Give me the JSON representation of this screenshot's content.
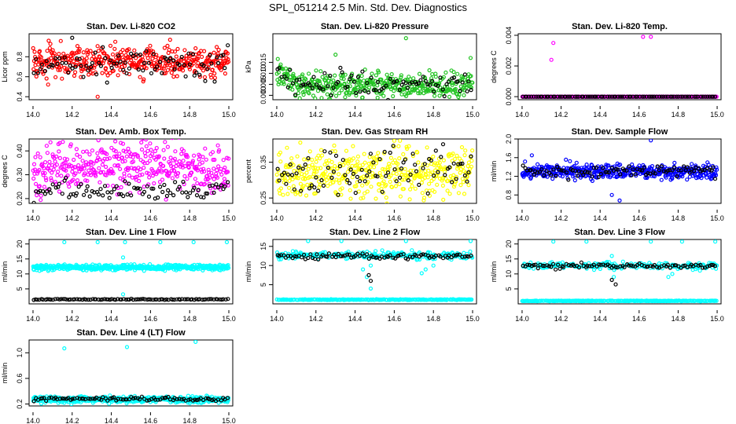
{
  "figure_title": "SPL_051214  2.5 Min. Std. Dev. Diagnostics",
  "colors": {
    "red": "#ff0000",
    "green": "#22c422",
    "magenta": "#ff00ff",
    "yellow": "#ffff00",
    "blue": "#0000ff",
    "cyan": "#00ffff",
    "black": "#000000"
  },
  "chart_data": [
    {
      "type": "scatter",
      "title": "Stan. Dev. Li-820 CO2",
      "xlabel": "",
      "ylabel": "Licor ppm",
      "xlim": [
        13.98,
        15.02
      ],
      "ylim": [
        0.37,
        1.03
      ],
      "xticks": [
        {
          "v": 14.0,
          "l": "14.0"
        },
        {
          "v": 14.2,
          "l": "14.2"
        },
        {
          "v": 14.4,
          "l": "14.4"
        },
        {
          "v": 14.6,
          "l": "14.6"
        },
        {
          "v": 14.8,
          "l": "14.8"
        },
        {
          "v": 15.0,
          "l": "15.0"
        }
      ],
      "yticks": [
        {
          "v": 0.4,
          "l": "0.4"
        },
        {
          "v": 0.6,
          "l": "0.6"
        },
        {
          "v": 0.8,
          "l": "0.8"
        }
      ],
      "series": [
        {
          "name": "colored",
          "color": "#ff0000",
          "n": 420,
          "base": 0.75,
          "spread": 0.075,
          "outliers": [
            [
              14.08,
              0.96
            ],
            [
              14.33,
              0.4
            ],
            [
              14.42,
              0.95
            ],
            [
              14.7,
              0.97
            ]
          ]
        },
        {
          "name": "black",
          "color": "#000000",
          "n": 90,
          "base": 0.72,
          "spread": 0.07,
          "outliers": [
            [
              14.2,
              0.99
            ]
          ]
        }
      ]
    },
    {
      "type": "scatter",
      "title": "Stan. Dev. Li-820 Pressure",
      "xlabel": "",
      "ylabel": "kPa",
      "xlim": [
        13.98,
        15.02
      ],
      "ylim": [
        -0.002,
        0.028
      ],
      "xticks": [
        {
          "v": 14.0,
          "l": "14.0"
        },
        {
          "v": 14.2,
          "l": "14.2"
        },
        {
          "v": 14.4,
          "l": "14.4"
        },
        {
          "v": 14.6,
          "l": "14.6"
        },
        {
          "v": 14.8,
          "l": "14.8"
        },
        {
          "v": 15.0,
          "l": "15.0"
        }
      ],
      "yticks": [
        {
          "v": 0.0,
          "l": "0.000"
        },
        {
          "v": 0.005,
          "l": "0.005"
        },
        {
          "v": 0.01,
          "l": "0.010"
        },
        {
          "v": 0.015,
          "l": "0.015"
        }
      ],
      "series": [
        {
          "name": "colored",
          "color": "#22c422",
          "n": 420,
          "base": 0.0045,
          "spread": 0.0028,
          "early_base": 0.011,
          "early_until": 14.12,
          "outliers": [
            [
              14.3,
              0.0185
            ],
            [
              14.66,
              0.026
            ],
            [
              14.99,
              0.017
            ]
          ]
        },
        {
          "name": "black",
          "color": "#000000",
          "n": 90,
          "base": 0.005,
          "spread": 0.0025,
          "early_base": 0.012,
          "early_until": 14.12,
          "outliers": []
        }
      ]
    },
    {
      "type": "scatter",
      "title": "Stan. Dev. Li-820 Temp.",
      "xlabel": "",
      "ylabel": "degrees C",
      "xlim": [
        13.98,
        15.02
      ],
      "ylim": [
        -0.0002,
        0.0041
      ],
      "xticks": [
        {
          "v": 14.0,
          "l": "14.0"
        },
        {
          "v": 14.2,
          "l": "14.2"
        },
        {
          "v": 14.4,
          "l": "14.4"
        },
        {
          "v": 14.6,
          "l": "14.6"
        },
        {
          "v": 14.8,
          "l": "14.8"
        },
        {
          "v": 15.0,
          "l": "15.0"
        }
      ],
      "yticks": [
        {
          "v": 0.0,
          "l": "0.000"
        },
        {
          "v": 0.002,
          "l": "0.002"
        },
        {
          "v": 0.004,
          "l": "0.004"
        }
      ],
      "series": [
        {
          "name": "colored",
          "color": "#ff00ff",
          "n": 300,
          "base": 0.0,
          "spread": 0.0,
          "outliers": [
            [
              14.15,
              0.0024
            ],
            [
              14.16,
              0.0035
            ],
            [
              14.62,
              0.0039
            ],
            [
              14.66,
              0.0039
            ]
          ]
        },
        {
          "name": "black",
          "color": "#000000",
          "n": 90,
          "base": 0.0,
          "spread": 0.0,
          "outliers": []
        }
      ]
    },
    {
      "type": "scatter",
      "title": "Stan. Dev. Amb. Box Temp.",
      "xlabel": "",
      "ylabel": "degrees C",
      "xlim": [
        13.98,
        15.02
      ],
      "ylim": [
        0.18,
        0.45
      ],
      "xticks": [
        {
          "v": 14.0,
          "l": "14.0"
        },
        {
          "v": 14.2,
          "l": "14.2"
        },
        {
          "v": 14.4,
          "l": "14.4"
        },
        {
          "v": 14.6,
          "l": "14.6"
        },
        {
          "v": 14.8,
          "l": "14.8"
        },
        {
          "v": 15.0,
          "l": "15.0"
        }
      ],
      "yticks": [
        {
          "v": 0.2,
          "l": "0.20"
        },
        {
          "v": 0.3,
          "l": "0.30"
        },
        {
          "v": 0.4,
          "l": "0.40"
        }
      ],
      "series": [
        {
          "name": "colored",
          "color": "#ff00ff",
          "n": 420,
          "base": 0.3,
          "spread": 0.05,
          "hump": 0.05,
          "outliers": [
            [
              14.46,
              0.43
            ]
          ]
        },
        {
          "name": "black",
          "color": "#000000",
          "n": 90,
          "base": 0.235,
          "spread": 0.02,
          "outliers": []
        }
      ]
    },
    {
      "type": "scatter",
      "title": "Stan. Dev. Gas Stream RH",
      "xlabel": "",
      "ylabel": "percent",
      "xlim": [
        13.98,
        15.02
      ],
      "ylim": [
        0.235,
        0.415
      ],
      "xticks": [
        {
          "v": 14.0,
          "l": "14.0"
        },
        {
          "v": 14.2,
          "l": "14.2"
        },
        {
          "v": 14.4,
          "l": "14.4"
        },
        {
          "v": 14.6,
          "l": "14.6"
        },
        {
          "v": 14.8,
          "l": "14.8"
        },
        {
          "v": 15.0,
          "l": "15.0"
        }
      ],
      "yticks": [
        {
          "v": 0.25,
          "l": "0.25"
        },
        {
          "v": 0.35,
          "l": "0.35"
        }
      ],
      "series": [
        {
          "name": "colored",
          "color": "#ffff00",
          "n": 420,
          "base": 0.32,
          "spread": 0.035,
          "outliers": [
            [
              14.12,
              0.405
            ],
            [
              14.6,
              0.41
            ],
            [
              14.85,
              0.245
            ]
          ]
        },
        {
          "name": "black",
          "color": "#000000",
          "n": 90,
          "base": 0.32,
          "spread": 0.035,
          "outliers": []
        }
      ]
    },
    {
      "type": "scatter",
      "title": "Stan. Dev. Sample Flow",
      "xlabel": "",
      "ylabel": "ml/min",
      "xlim": [
        13.98,
        15.02
      ],
      "ylim": [
        0.62,
        2.0
      ],
      "xticks": [
        {
          "v": 14.0,
          "l": "14.0"
        },
        {
          "v": 14.2,
          "l": "14.2"
        },
        {
          "v": 14.4,
          "l": "14.4"
        },
        {
          "v": 14.6,
          "l": "14.6"
        },
        {
          "v": 14.8,
          "l": "14.8"
        },
        {
          "v": 15.0,
          "l": "15.0"
        }
      ],
      "yticks": [
        {
          "v": 0.8,
          "l": "0.8"
        },
        {
          "v": 1.2,
          "l": "1.2"
        },
        {
          "v": 1.6,
          "l": "1.6"
        },
        {
          "v": 2.0,
          "l": "2.0"
        }
      ],
      "series": [
        {
          "name": "colored",
          "color": "#0000ff",
          "n": 420,
          "base": 1.3,
          "spread": 0.08,
          "outliers": [
            [
              14.46,
              0.8
            ],
            [
              14.5,
              0.68
            ],
            [
              14.66,
              1.97
            ],
            [
              14.05,
              1.65
            ]
          ]
        },
        {
          "name": "black",
          "color": "#000000",
          "n": 90,
          "base": 1.32,
          "spread": 0.07,
          "outliers": []
        }
      ]
    },
    {
      "type": "scatter",
      "title": "Stan. Dev. Line 1 Flow",
      "xlabel": "",
      "ylabel": "ml/min",
      "xlim": [
        13.98,
        15.02
      ],
      "ylim": [
        0.0,
        21.5
      ],
      "xticks": [
        {
          "v": 14.0,
          "l": "14.0"
        },
        {
          "v": 14.2,
          "l": "14.2"
        },
        {
          "v": 14.4,
          "l": "14.4"
        },
        {
          "v": 14.6,
          "l": "14.6"
        },
        {
          "v": 14.8,
          "l": "14.8"
        },
        {
          "v": 15.0,
          "l": "15.0"
        }
      ],
      "yticks": [
        {
          "v": 5,
          "l": "5"
        },
        {
          "v": 10,
          "l": "10"
        },
        {
          "v": 15,
          "l": "15"
        },
        {
          "v": 20,
          "l": "20"
        }
      ],
      "series": [
        {
          "name": "colored",
          "color": "#00ffff",
          "n": 480,
          "base": 12.2,
          "spread": 0.45,
          "outliers": [
            [
              14.16,
              20.6
            ],
            [
              14.33,
              20.6
            ],
            [
              14.47,
              20.6
            ],
            [
              14.65,
              20.6
            ],
            [
              14.82,
              20.6
            ],
            [
              14.99,
              20.6
            ],
            [
              14.46,
              3.2
            ],
            [
              14.46,
              15.5
            ]
          ]
        },
        {
          "name": "black",
          "color": "#000000",
          "n": 100,
          "base": 1.5,
          "spread": 0.08,
          "outliers": []
        }
      ]
    },
    {
      "type": "scatter",
      "title": "Stan. Dev. Line 2 Flow",
      "xlabel": "",
      "ylabel": "ml/min",
      "xlim": [
        13.98,
        15.02
      ],
      "ylim": [
        0.0,
        16.8
      ],
      "xticks": [
        {
          "v": 14.0,
          "l": "14.0"
        },
        {
          "v": 14.2,
          "l": "14.2"
        },
        {
          "v": 14.4,
          "l": "14.4"
        },
        {
          "v": 14.6,
          "l": "14.6"
        },
        {
          "v": 14.8,
          "l": "14.8"
        },
        {
          "v": 15.0,
          "l": "15.0"
        }
      ],
      "yticks": [
        {
          "v": 5,
          "l": "5"
        },
        {
          "v": 10,
          "l": "10"
        },
        {
          "v": 15,
          "l": "15"
        }
      ],
      "series": [
        {
          "name": "colored",
          "color": "#00ffff",
          "n": 480,
          "base": 1.1,
          "spread": 0.05,
          "band_base": 12.7,
          "band_spread": 0.5,
          "outliers": [
            [
              14.16,
              16.4
            ],
            [
              14.33,
              16.4
            ],
            [
              14.66,
              16.4
            ],
            [
              14.99,
              16.4
            ],
            [
              14.44,
              9
            ],
            [
              14.46,
              7
            ],
            [
              14.48,
              4
            ],
            [
              14.48,
              10
            ],
            [
              14.76,
              9
            ],
            [
              14.74,
              8
            ],
            [
              14.8,
              10
            ]
          ]
        },
        {
          "name": "black",
          "color": "#000000",
          "n": 90,
          "base": 12.5,
          "spread": 0.4,
          "outliers": [
            [
              14.47,
              7.5
            ],
            [
              14.48,
              6
            ]
          ]
        }
      ]
    },
    {
      "type": "scatter",
      "title": "Stan. Dev. Line 3 Flow",
      "xlabel": "",
      "ylabel": "ml/min",
      "xlim": [
        13.98,
        15.02
      ],
      "ylim": [
        0.0,
        21.5
      ],
      "xticks": [
        {
          "v": 14.0,
          "l": "14.0"
        },
        {
          "v": 14.2,
          "l": "14.2"
        },
        {
          "v": 14.4,
          "l": "14.4"
        },
        {
          "v": 14.6,
          "l": "14.6"
        },
        {
          "v": 14.8,
          "l": "14.8"
        },
        {
          "v": 15.0,
          "l": "15.0"
        }
      ],
      "yticks": [
        {
          "v": 5,
          "l": "5"
        },
        {
          "v": 10,
          "l": "10"
        },
        {
          "v": 15,
          "l": "15"
        },
        {
          "v": 20,
          "l": "20"
        }
      ],
      "series": [
        {
          "name": "colored",
          "color": "#00ffff",
          "n": 480,
          "base": 1.0,
          "spread": 0.05,
          "band_base": 12.8,
          "band_spread": 0.6,
          "outliers": [
            [
              14.16,
              20.8
            ],
            [
              14.33,
              20.8
            ],
            [
              14.66,
              20.8
            ],
            [
              14.82,
              20.8
            ],
            [
              14.99,
              20.8
            ],
            [
              14.47,
              9
            ],
            [
              14.75,
              9
            ],
            [
              14.77,
              10
            ],
            [
              14.46,
              16
            ]
          ]
        },
        {
          "name": "black",
          "color": "#000000",
          "n": 90,
          "base": 12.7,
          "spread": 0.45,
          "outliers": [
            [
              14.46,
              8
            ],
            [
              14.48,
              6.5
            ]
          ]
        }
      ]
    },
    {
      "type": "scatter",
      "title": "Stan. Dev. Line 4 (LT) Flow",
      "xlabel": "",
      "ylabel": "ml/min",
      "xlim": [
        13.98,
        15.02
      ],
      "ylim": [
        0.17,
        1.2
      ],
      "xticks": [
        {
          "v": 14.0,
          "l": "14.0"
        },
        {
          "v": 14.2,
          "l": "14.2"
        },
        {
          "v": 14.4,
          "l": "14.4"
        },
        {
          "v": 14.6,
          "l": "14.6"
        },
        {
          "v": 14.8,
          "l": "14.8"
        },
        {
          "v": 15.0,
          "l": "15.0"
        }
      ],
      "yticks": [
        {
          "v": 0.2,
          "l": "0.2"
        },
        {
          "v": 0.6,
          "l": "0.6"
        },
        {
          "v": 1.0,
          "l": "1.0"
        }
      ],
      "series": [
        {
          "name": "colored",
          "color": "#00ffff",
          "n": 480,
          "base": 0.27,
          "spread": 0.025,
          "outliers": [
            [
              14.16,
              1.07
            ],
            [
              14.48,
              1.09
            ],
            [
              14.83,
              1.17
            ]
          ]
        },
        {
          "name": "black",
          "color": "#000000",
          "n": 90,
          "base": 0.275,
          "spread": 0.015,
          "outliers": []
        }
      ]
    }
  ]
}
